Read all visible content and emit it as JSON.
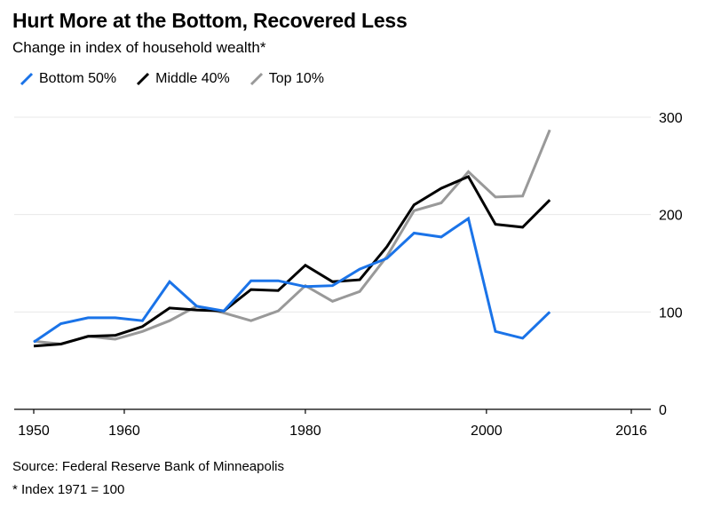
{
  "title": "Hurt More at the Bottom, Recovered Less",
  "subtitle": "Change in index of household wealth*",
  "source": "Source: Federal Reserve Bank of Minneapolis",
  "note": "* Index 1971 = 100",
  "chart_data": {
    "type": "line",
    "title": "Hurt More at the Bottom, Recovered Less",
    "subtitle": "Change in index of household wealth*",
    "xlabel": "",
    "ylabel": "",
    "xlim": [
      1950,
      2016
    ],
    "ylim": [
      0,
      300
    ],
    "x_ticks": [
      1950,
      1960,
      1980,
      2000,
      2016
    ],
    "y_ticks": [
      0,
      100,
      200,
      300
    ],
    "grid": "horizontal",
    "legend": "top-left",
    "y_axis_side": "right",
    "x": [
      1950,
      1953,
      1956,
      1959,
      1962,
      1965,
      1968,
      1971,
      1974,
      1977,
      1980,
      1983,
      1986,
      1989,
      1992,
      1995,
      1998,
      2001,
      2004,
      2007,
      2010,
      2013,
      2016
    ],
    "series": [
      {
        "name": "Bottom 50%",
        "color": "#1a73e8",
        "values": [
          69,
          88,
          94,
          94,
          91,
          131,
          106,
          101,
          132,
          132,
          126,
          127,
          144,
          155,
          181,
          177,
          196,
          80,
          73,
          100,
          null,
          null,
          null
        ]
      },
      {
        "name": "Middle 40%",
        "color": "#000000",
        "values": [
          65,
          67,
          75,
          76,
          85,
          104,
          102,
          101,
          123,
          122,
          148,
          131,
          133,
          167,
          210,
          227,
          239,
          190,
          187,
          215,
          null,
          null,
          null
        ]
      },
      {
        "name": "Top 10%",
        "color": "#999999",
        "values": [
          70,
          67,
          75,
          72,
          80,
          91,
          106,
          99,
          91,
          101,
          127,
          111,
          121,
          157,
          204,
          212,
          244,
          218,
          219,
          287,
          null,
          null,
          null
        ]
      }
    ]
  }
}
